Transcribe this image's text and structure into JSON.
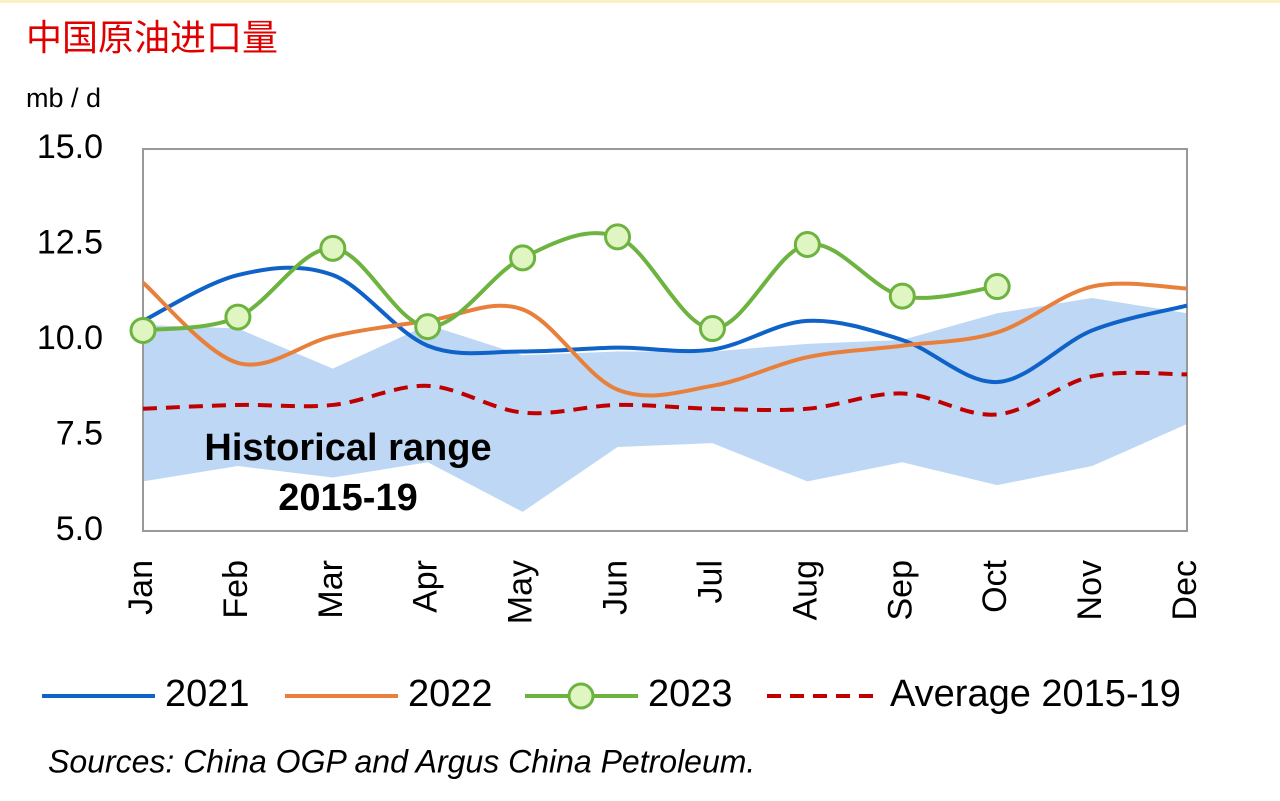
{
  "chart_data": {
    "type": "line",
    "title": "中国原油进口量",
    "y_axis_label": "mb / d",
    "source": "Sources: China OGP and Argus China Petroleum.",
    "categories": [
      "Jan",
      "Feb",
      "Mar",
      "Apr",
      "May",
      "Jun",
      "Jul",
      "Aug",
      "Sep",
      "Oct",
      "Nov",
      "Dec"
    ],
    "ylim": [
      5.0,
      15.0
    ],
    "yticks": [
      {
        "value": 5.0,
        "label": "5.0"
      },
      {
        "value": 7.5,
        "label": "7.5"
      },
      {
        "value": 10.0,
        "label": "10.0"
      },
      {
        "value": 12.5,
        "label": "12.5"
      },
      {
        "value": 15.0,
        "label": "15.0"
      }
    ],
    "grid": false,
    "range": {
      "label": [
        "Historical range",
        "2015-19"
      ],
      "color": "#bdd7f5",
      "high": [
        10.4,
        10.3,
        9.25,
        10.4,
        9.6,
        9.7,
        9.7,
        9.9,
        10.0,
        10.7,
        11.1,
        10.7
      ],
      "low": [
        6.3,
        6.7,
        6.4,
        6.8,
        5.5,
        7.2,
        7.3,
        6.3,
        6.8,
        6.2,
        6.7,
        7.8
      ]
    },
    "series": [
      {
        "name": "2021",
        "color": "#0f62c8",
        "style": "solid",
        "marker": false,
        "values": [
          10.5,
          11.7,
          11.7,
          9.85,
          9.7,
          9.8,
          9.75,
          10.5,
          10.0,
          8.9,
          10.25,
          10.9
        ]
      },
      {
        "name": "2022",
        "color": "#e8803c",
        "style": "solid",
        "marker": false,
        "values": [
          11.5,
          9.4,
          10.1,
          10.5,
          10.8,
          8.7,
          8.8,
          9.55,
          9.85,
          10.2,
          11.4,
          11.35
        ]
      },
      {
        "name": "2023",
        "color": "#6db33f",
        "style": "solid",
        "marker": true,
        "values": [
          10.25,
          10.6,
          12.4,
          10.35,
          12.15,
          12.7,
          10.3,
          12.5,
          11.15,
          11.4,
          null,
          null
        ]
      },
      {
        "name": "Average 2015-19",
        "color": "#c00000",
        "style": "dashed",
        "marker": false,
        "values": [
          8.2,
          8.3,
          8.3,
          8.8,
          8.1,
          8.3,
          8.2,
          8.2,
          8.6,
          8.05,
          9.05,
          9.1
        ]
      }
    ]
  }
}
